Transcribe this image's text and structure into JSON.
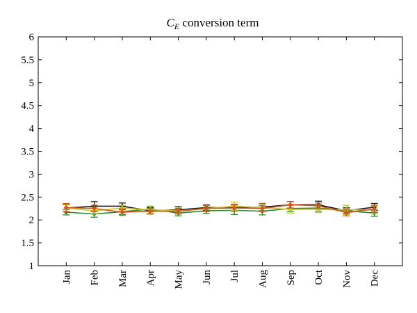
{
  "chart_data": {
    "type": "line",
    "title_main": "C",
    "title_sub": "E",
    "title_rest": " conversion term",
    "xlabel": "",
    "ylabel": "",
    "ylim": [
      1,
      6
    ],
    "yticks": [
      "1",
      "1.5",
      "2",
      "2.5",
      "3",
      "3.5",
      "4",
      "4.5",
      "5",
      "5.5",
      "6"
    ],
    "ytick_values": [
      1,
      1.5,
      2,
      2.5,
      3,
      3.5,
      4,
      4.5,
      5,
      5.5,
      6
    ],
    "categories": [
      "Jan",
      "Feb",
      "Mar",
      "Apr",
      "May",
      "Jun",
      "Jul",
      "Aug",
      "Sep",
      "Oct",
      "Nov",
      "Dec"
    ],
    "grid": false,
    "series": [
      {
        "color": "#1a1a1a",
        "values": [
          2.26,
          2.3,
          2.3,
          2.2,
          2.22,
          2.27,
          2.27,
          2.28,
          2.33,
          2.33,
          2.2,
          2.28
        ],
        "errors": [
          0.08,
          0.1,
          0.07,
          0.07,
          0.07,
          0.06,
          0.07,
          0.08,
          0.07,
          0.08,
          0.07,
          0.08
        ]
      },
      {
        "color": "#2a8a2a",
        "values": [
          2.17,
          2.13,
          2.18,
          2.24,
          2.15,
          2.2,
          2.21,
          2.19,
          2.25,
          2.26,
          2.2,
          2.15
        ],
        "errors": [
          0.06,
          0.07,
          0.06,
          0.06,
          0.06,
          0.06,
          0.09,
          0.08,
          0.07,
          0.07,
          0.06,
          0.07
        ]
      },
      {
        "color": "#c8c820",
        "values": [
          2.26,
          2.2,
          2.26,
          2.22,
          2.2,
          2.25,
          2.3,
          2.27,
          2.23,
          2.23,
          2.22,
          2.22
        ],
        "errors": [
          0.07,
          0.07,
          0.06,
          0.07,
          0.06,
          0.06,
          0.09,
          0.08,
          0.08,
          0.07,
          0.1,
          0.08
        ]
      },
      {
        "color": "#d4531e",
        "values": [
          2.27,
          2.25,
          2.17,
          2.19,
          2.19,
          2.25,
          2.26,
          2.25,
          2.33,
          2.31,
          2.16,
          2.24
        ],
        "errors": [
          0.09,
          0.07,
          0.07,
          0.06,
          0.06,
          0.07,
          0.07,
          0.07,
          0.07,
          0.06,
          0.07,
          0.08
        ]
      }
    ]
  }
}
